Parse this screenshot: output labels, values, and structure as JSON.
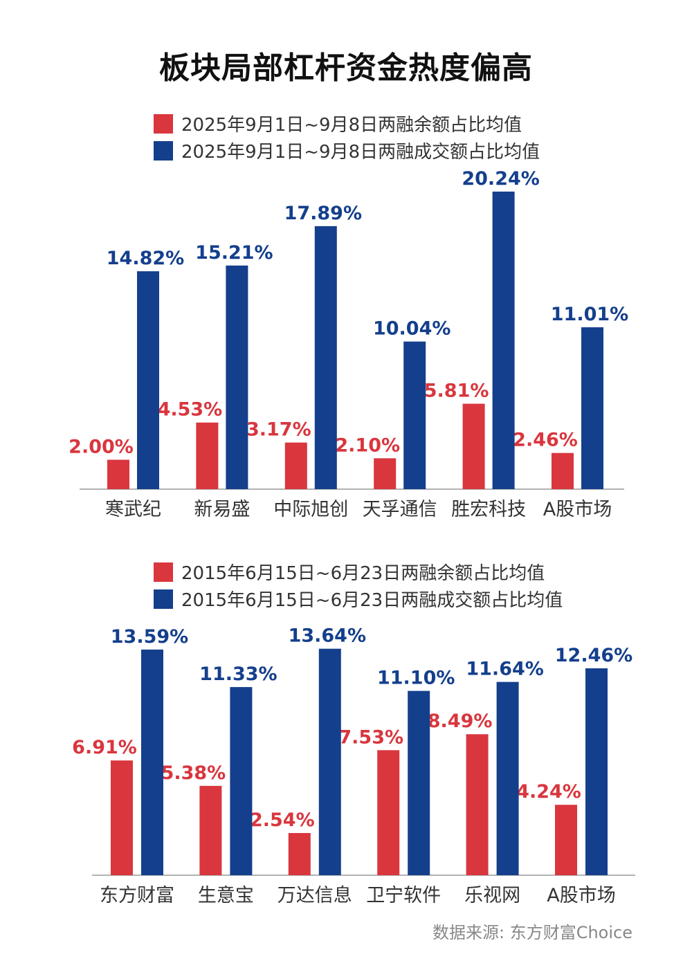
{
  "title": "板块局部杠杆资金热度偏高",
  "source": "数据来源: 东方财富Choice",
  "colors": {
    "red": "#d9363e",
    "blue": "#143f8c"
  },
  "chart_data": [
    {
      "type": "bar",
      "categories": [
        "寒武纪",
        "新易盛",
        "中际旭创",
        "天孚通信",
        "胜宏科技",
        "A股市场"
      ],
      "series": [
        {
          "name": "2025年9月1日~9月8日两融余额占比均值",
          "values": [
            2.0,
            4.53,
            3.17,
            2.1,
            5.81,
            2.46
          ],
          "labels": [
            "2.00%",
            "4.53%",
            "3.17%",
            "2.10%",
            "5.81%",
            "2.46%"
          ]
        },
        {
          "name": "2025年9月1日~9月8日两融成交额占比均值",
          "values": [
            14.82,
            15.21,
            17.89,
            10.04,
            20.24,
            11.01
          ],
          "labels": [
            "14.82%",
            "15.21%",
            "17.89%",
            "10.04%",
            "20.24%",
            "11.01%"
          ]
        }
      ],
      "unit": "%"
    },
    {
      "type": "bar",
      "categories": [
        "东方财富",
        "生意宝",
        "万达信息",
        "卫宁软件",
        "乐视网",
        "A股市场"
      ],
      "series": [
        {
          "name": "2015年6月15日~6月23日两融余额占比均值",
          "values": [
            6.91,
            5.38,
            2.54,
            7.53,
            8.49,
            4.24
          ],
          "labels": [
            "6.91%",
            "5.38%",
            "2.54%",
            "7.53%",
            "8.49%",
            "4.24%"
          ]
        },
        {
          "name": "2015年6月15日~6月23日两融成交额占比均值",
          "values": [
            13.59,
            11.33,
            13.64,
            11.1,
            11.64,
            12.46
          ],
          "labels": [
            "13.59%",
            "11.33%",
            "13.64%",
            "11.10%",
            "11.64%",
            "12.46%"
          ]
        }
      ],
      "unit": "%"
    }
  ]
}
